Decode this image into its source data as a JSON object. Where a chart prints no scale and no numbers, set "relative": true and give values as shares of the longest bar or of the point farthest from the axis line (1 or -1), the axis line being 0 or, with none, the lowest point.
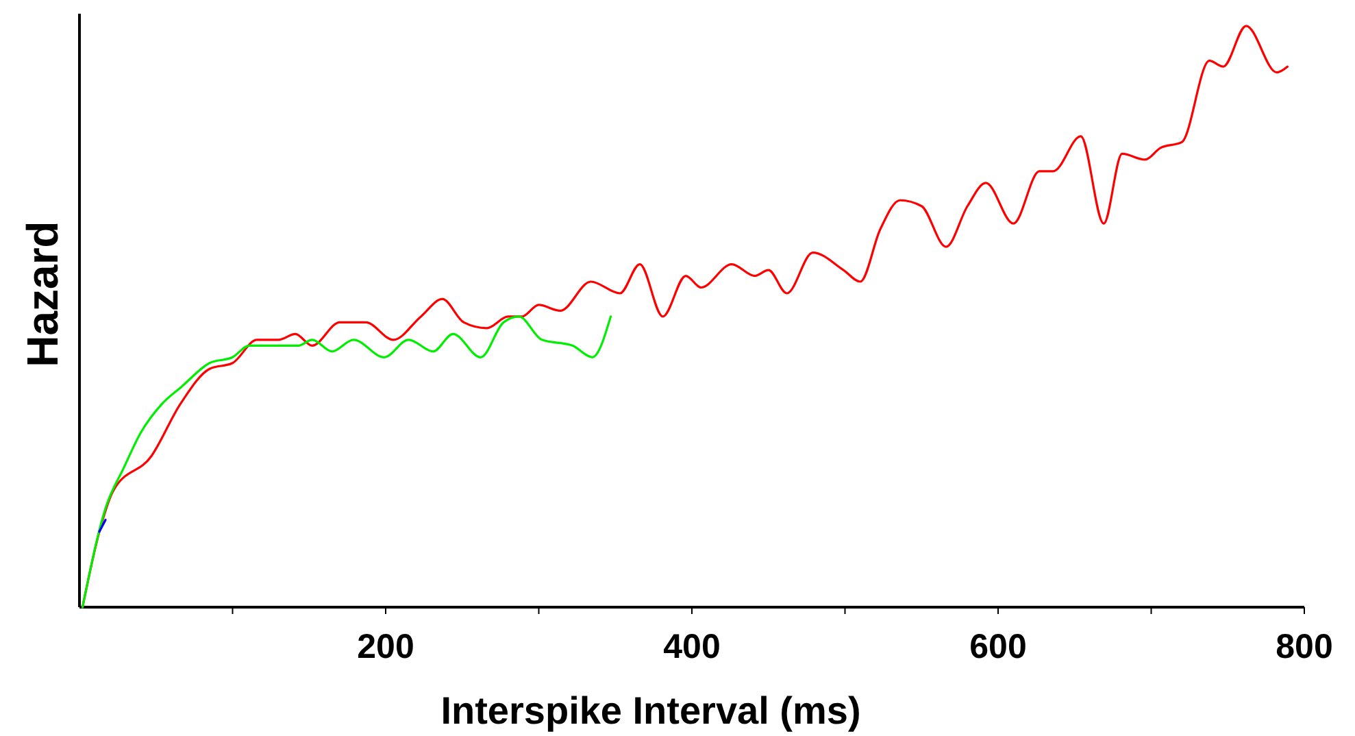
{
  "chart_data": {
    "type": "line",
    "xlabel": "Interspike Interval (ms)",
    "ylabel": "Hazard",
    "relative": true,
    "xlim": [
      0,
      800
    ],
    "xticks": [
      {
        "value": 100,
        "label": null
      },
      200,
      {
        "value": 300,
        "label": null
      },
      400,
      {
        "value": 500,
        "label": null
      },
      600,
      {
        "value": 700,
        "label": null
      },
      800
    ],
    "grid": false,
    "marker": "none",
    "line_style": "solid",
    "series": [
      {
        "color": "#ff0000",
        "x": [
          2,
          13,
          22,
          47,
          66,
          85,
          100,
          116,
          130,
          141,
          152,
          170,
          187,
          205,
          223,
          237,
          251,
          266,
          280,
          289,
          300,
          314,
          334,
          353,
          366,
          381,
          396,
          406,
          426,
          441,
          450,
          462,
          479,
          499,
          510,
          523,
          536,
          550,
          566,
          580,
          592,
          610,
          627,
          636,
          654,
          669,
          681,
          696,
          706,
          720,
          738,
          747,
          762,
          782,
          789
        ],
        "values": [
          0,
          0.13,
          0.2,
          0.26,
          0.35,
          0.41,
          0.42,
          0.46,
          0.46,
          0.47,
          0.45,
          0.49,
          0.49,
          0.46,
          0.5,
          0.53,
          0.49,
          0.48,
          0.5,
          0.5,
          0.52,
          0.51,
          0.56,
          0.54,
          0.59,
          0.5,
          0.57,
          0.55,
          0.59,
          0.57,
          0.58,
          0.54,
          0.61,
          0.58,
          0.56,
          0.65,
          0.7,
          0.69,
          0.62,
          0.69,
          0.73,
          0.66,
          0.75,
          0.75,
          0.81,
          0.66,
          0.78,
          0.77,
          0.79,
          0.8,
          0.94,
          0.93,
          1,
          0.92,
          0.93
        ]
      },
      {
        "color": "#00ee00",
        "x": [
          2,
          17,
          29,
          40,
          54,
          67,
          85,
          100,
          111,
          121,
          143,
          152,
          165,
          179,
          199,
          215,
          231,
          244,
          262,
          277,
          287,
          302,
          322,
          335,
          347
        ],
        "values": [
          0,
          0.17,
          0.24,
          0.3,
          0.35,
          0.38,
          0.42,
          0.43,
          0.45,
          0.45,
          0.45,
          0.46,
          0.44,
          0.46,
          0.43,
          0.46,
          0.44,
          0.47,
          0.43,
          0.49,
          0.5,
          0.46,
          0.45,
          0.43,
          0.5
        ]
      },
      {
        "color": "#0000ff",
        "x": [
          13,
          17
        ],
        "values": [
          0.13,
          0.15
        ]
      }
    ]
  }
}
